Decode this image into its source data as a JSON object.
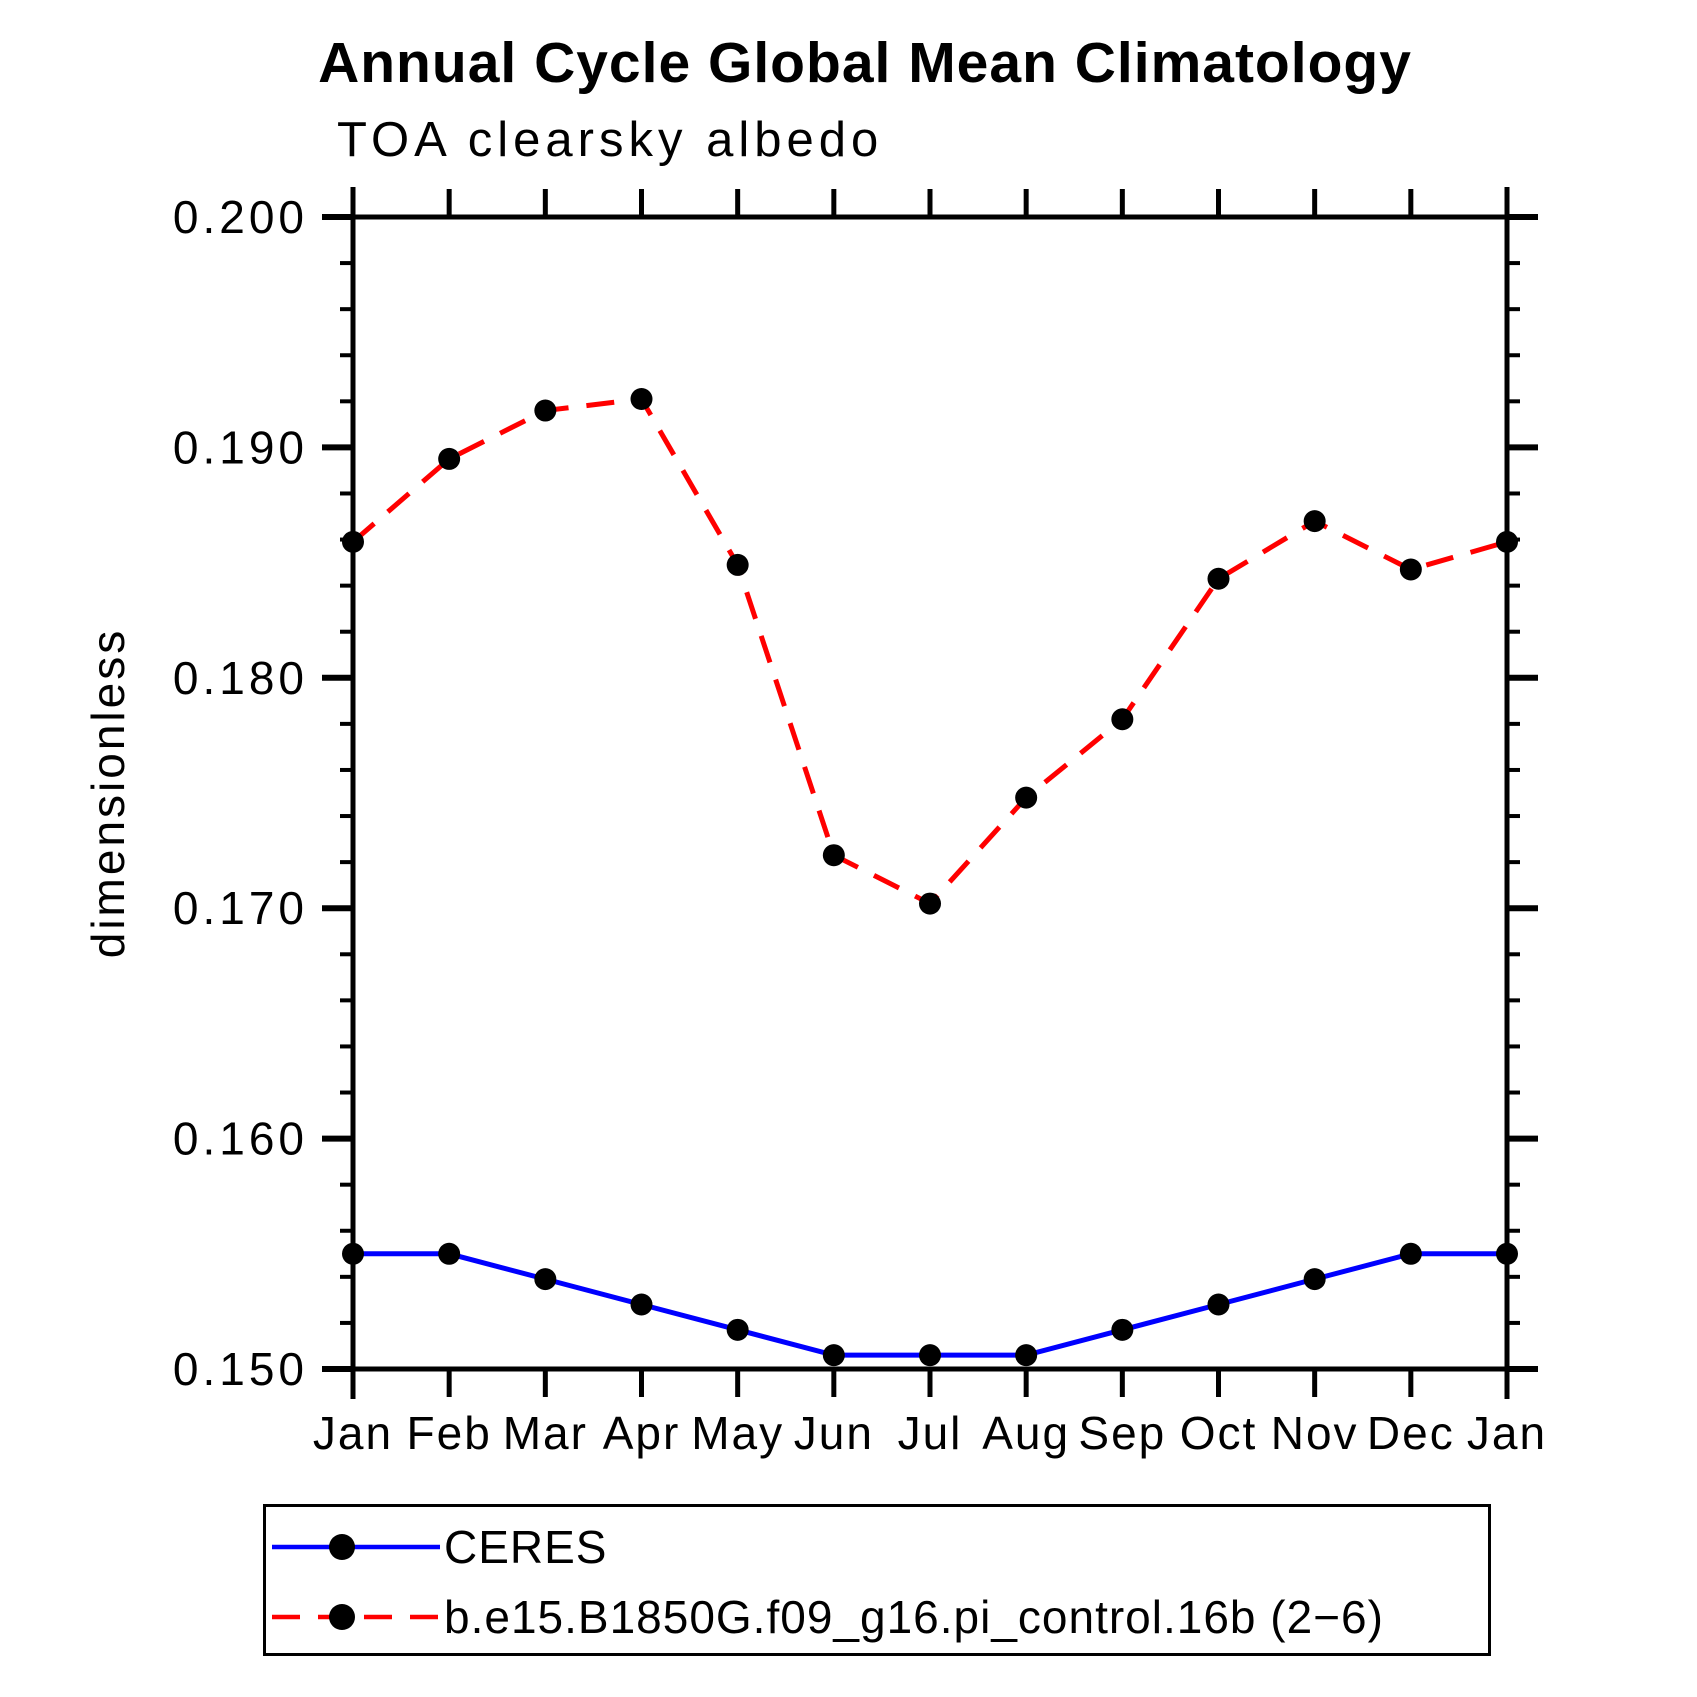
{
  "title": "Annual Cycle Global Mean Climatology",
  "subtitle": "TOA clearsky albedo",
  "chart_data": {
    "type": "line",
    "title": "Annual Cycle Global Mean Climatology",
    "subtitle": "TOA clearsky albedo",
    "xlabel": "",
    "ylabel": "dimensionless",
    "x_categories": [
      "Jan",
      "Feb",
      "Mar",
      "Apr",
      "May",
      "Jun",
      "Jul",
      "Aug",
      "Sep",
      "Oct",
      "Nov",
      "Dec",
      "Jan"
    ],
    "ylim": [
      0.15,
      0.2
    ],
    "y_major_ticks": [
      0.15,
      0.16,
      0.17,
      0.18,
      0.19,
      0.2
    ],
    "y_tick_labels": [
      "0.150",
      "0.160",
      "0.170",
      "0.180",
      "0.190",
      "0.200"
    ],
    "y_minor_step": 0.002,
    "grid": false,
    "legend_position": "bottom-left-box",
    "series": [
      {
        "name": "CERES",
        "color": "#0000ff",
        "style": "solid",
        "marker": "circle",
        "marker_color": "#000000",
        "values": [
          0.155,
          0.155,
          0.1539,
          0.1528,
          0.1517,
          0.1506,
          0.1506,
          0.1506,
          0.1517,
          0.1528,
          0.1539,
          0.155,
          0.155
        ]
      },
      {
        "name": "b.e15.B1850G.f09_g16.pi_control.16b (2−6)",
        "color": "#ff0000",
        "style": "dashed",
        "marker": "circle",
        "marker_color": "#000000",
        "values": [
          0.1859,
          0.1895,
          0.1916,
          0.1921,
          0.1849,
          0.1723,
          0.1702,
          0.1748,
          0.1782,
          0.1843,
          0.1868,
          0.1847,
          0.1859
        ]
      }
    ]
  },
  "colors": {
    "axis": "#000000",
    "background": "#ffffff"
  }
}
